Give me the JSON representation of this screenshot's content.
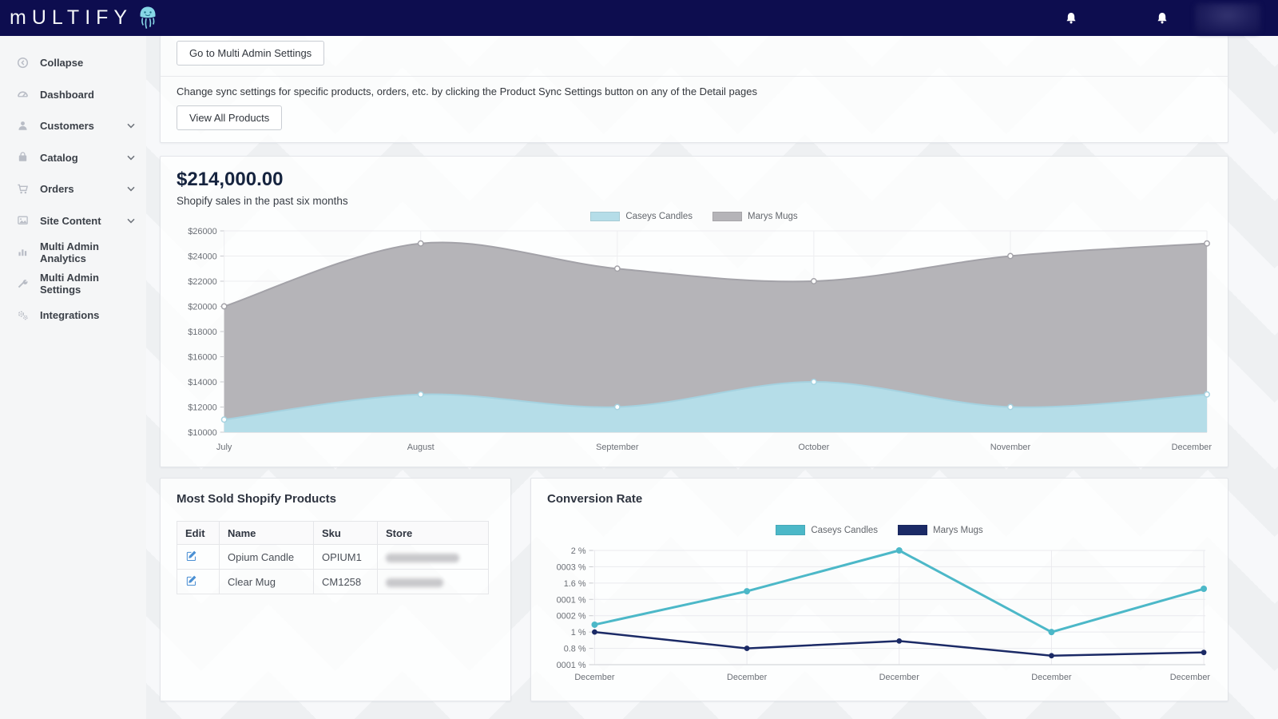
{
  "navbar": {
    "logo_text": "mULTIFY",
    "logo_icon": "jellyfish-icon",
    "right_icons": [
      "bell-icon",
      "bell-icon"
    ],
    "user_area": "redacted-blur"
  },
  "sidebar": {
    "items": [
      {
        "label": "Collapse",
        "icon": "collapse-circle-left-icon",
        "expandable": false
      },
      {
        "label": "Dashboard",
        "icon": "dashboard-gauge-icon",
        "expandable": false
      },
      {
        "label": "Customers",
        "icon": "customer-person-icon",
        "expandable": true
      },
      {
        "label": "Catalog",
        "icon": "catalog-bag-icon",
        "expandable": true
      },
      {
        "label": "Orders",
        "icon": "orders-cart-icon",
        "expandable": true
      },
      {
        "label": "Site Content",
        "icon": "site-content-image-icon",
        "expandable": true
      },
      {
        "label": "Multi Admin Analytics",
        "icon": "analytics-bars-icon",
        "expandable": false
      },
      {
        "label": "Multi Admin Settings",
        "icon": "settings-wrench-icon",
        "expandable": false
      },
      {
        "label": "Integrations",
        "icon": "integrations-gears-icon",
        "expandable": false
      }
    ]
  },
  "top_card": {
    "settings_button": "Go to Multi Admin Settings",
    "info_text": "Change sync settings for specific products, orders, etc. by clicking the Product Sync Settings button on any of the Detail pages",
    "products_button": "View All Products"
  },
  "sales_card": {
    "total": "$214,000.00",
    "subtitle": "Shopify sales in the past six months"
  },
  "products_card": {
    "title": "Most Sold Shopify Products",
    "headers": [
      "Edit",
      "Name",
      "Sku",
      "Store"
    ],
    "rows": [
      {
        "name": "Opium Candle",
        "sku": "OPIUM1",
        "store_blurred": true
      },
      {
        "name": "Clear Mug",
        "sku": "CM1258",
        "store_blurred": true
      }
    ]
  },
  "conversion_card": {
    "title": "Conversion Rate"
  },
  "colors": {
    "navbar_bg": "#0d0d4f",
    "brand_teal": "#86d7e6",
    "sales_area_blue": "#b5dde8",
    "sales_area_gray": "#b5b4b8",
    "conversion_teal": "#4cb8c8",
    "conversion_navy": "#1b2a66",
    "edit_icon_blue": "#4a8fd3"
  },
  "chart_data": [
    {
      "id": "shopify-sales",
      "type": "area",
      "title": "Shopify sales in the past six months",
      "categories": [
        "July",
        "August",
        "September",
        "October",
        "November",
        "December"
      ],
      "series": [
        {
          "name": "Caseys Candles",
          "color": "#b5dde8",
          "line_color": "#a5d2e0",
          "values": [
            11000,
            13000,
            12000,
            14000,
            12000,
            13000
          ]
        },
        {
          "name": "Marys Mugs",
          "color": "#b5b4b8",
          "line_color": "#a3a2a8",
          "values": [
            20000,
            25000,
            23000,
            22000,
            24000,
            25000
          ]
        }
      ],
      "draw_order": [
        1,
        0
      ],
      "ylim": [
        10000,
        26000
      ],
      "tick_step": 2000,
      "y_tick_labels": [
        "$26000",
        "$24000",
        "$22000",
        "$20000",
        "$18000",
        "$16000",
        "$14000",
        "$12000",
        "$10000"
      ],
      "legend_position": "top-center",
      "grid": true
    },
    {
      "id": "conversion-rate",
      "type": "line",
      "title": "Conversion Rate",
      "categories": [
        "December",
        "December",
        "December",
        "December",
        "December"
      ],
      "y_tick_labels": [
        "2 %",
        "0003 %",
        "1.6 %",
        "0001 %",
        "0002 %",
        "1 %",
        "0.8 %",
        "0001 %"
      ],
      "series": [
        {
          "name": "Caseys Candles",
          "color": "#4cb8c8",
          "values_pct": [
            1.1,
            1.45,
            2.0,
            1.0,
            1.5
          ],
          "grid_pos": [
            4.55,
            2.5,
            0,
            5,
            2.35
          ]
        },
        {
          "name": "Marys Mugs",
          "color": "#1b2a66",
          "values_pct": [
            1.0,
            0.8,
            0.9,
            0.73,
            0.76
          ],
          "grid_pos": [
            5,
            6,
            5.55,
            6.45,
            6.25
          ]
        }
      ],
      "legend_position": "top-center",
      "grid": true
    }
  ]
}
